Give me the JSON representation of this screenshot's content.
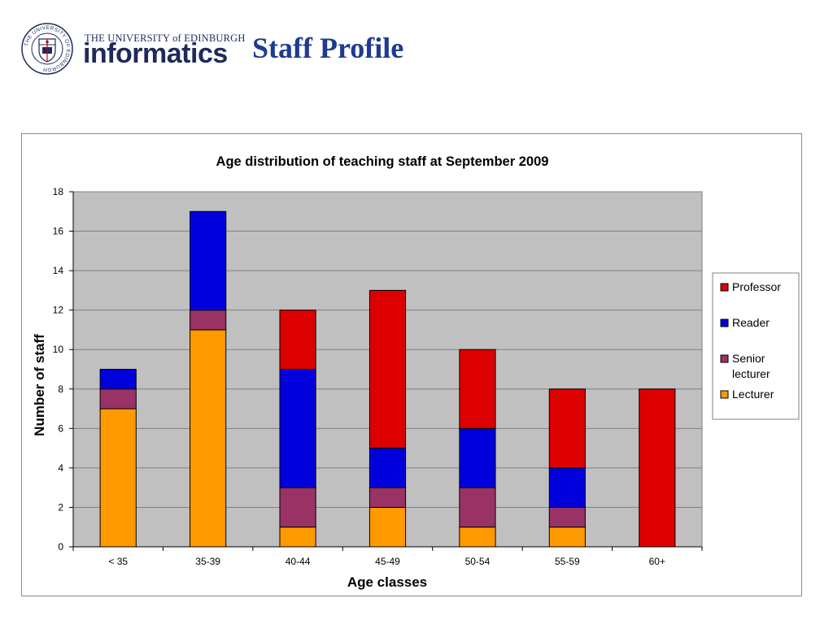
{
  "header": {
    "logo_top_text": "THE UNIVERSITY of EDINBURGH",
    "logo_main_text": "informatics",
    "seal_ring_text": "THE UNIVERSITY OF EDINBURGH",
    "page_title": "Staff Profile"
  },
  "chart_data": {
    "type": "bar",
    "stacked": true,
    "title": "Age distribution of teaching staff at September 2009",
    "xlabel": "Age classes",
    "ylabel": "Number of staff",
    "ylim": [
      0,
      18
    ],
    "yticks": [
      0,
      2,
      4,
      6,
      8,
      10,
      12,
      14,
      16,
      18
    ],
    "grid": true,
    "legend_position": "right",
    "categories": [
      "< 35",
      "35-39",
      "40-44",
      "45-49",
      "50-54",
      "55-59",
      "60+"
    ],
    "series": [
      {
        "name": "Lecturer",
        "color": "#ff9900",
        "values": [
          7,
          11,
          1,
          2,
          1,
          1,
          0
        ]
      },
      {
        "name": "Senior lecturer",
        "color": "#993366",
        "values": [
          1,
          1,
          2,
          1,
          2,
          1,
          0
        ]
      },
      {
        "name": "Reader",
        "color": "#0000dd",
        "values": [
          1,
          5,
          6,
          2,
          3,
          2,
          0
        ]
      },
      {
        "name": "Professor",
        "color": "#dd0000",
        "values": [
          0,
          0,
          3,
          8,
          4,
          4,
          8
        ]
      }
    ],
    "legend_order": [
      "Professor",
      "Reader",
      "Senior lecturer",
      "Lecturer"
    ],
    "plot_background": "#c0c0c0"
  }
}
